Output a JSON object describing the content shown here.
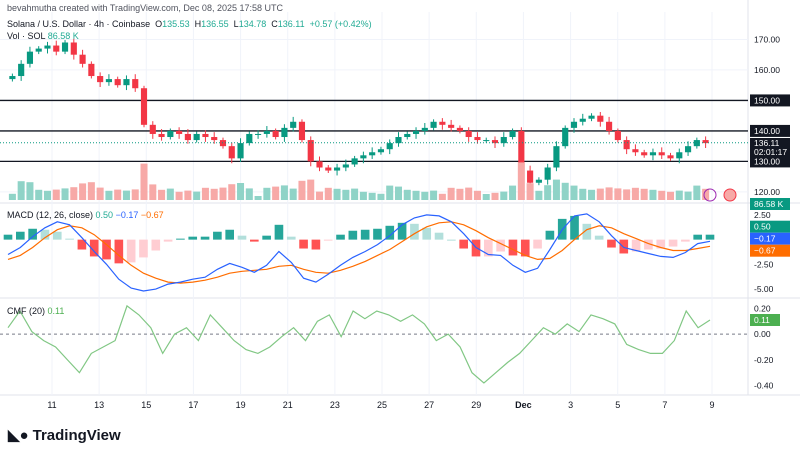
{
  "header": {
    "created": "bevahmutha created with TradingView.com, Dec 08, 2025 17:58 UTC",
    "symbol": "Solana / U.S. Dollar · 4h · Coinbase",
    "open": "135.53",
    "high": "136.55",
    "low": "134.78",
    "close": "136.11",
    "change": "+0.57 (+0.42%)",
    "vol_label": "Vol · SOL",
    "vol_value": "86.58 K"
  },
  "macd_legend": {
    "label": "MACD (12, 26, close)",
    "hist": "0.50",
    "macd": "−0.17",
    "signal": "−0.67"
  },
  "cmf_legend": {
    "label": "CMF (20)",
    "value": "0.11"
  },
  "brand": "TradingView",
  "colors": {
    "up": "#089981",
    "down": "#f23645",
    "macd": "#2962ff",
    "signal": "#ff6d00",
    "cmf": "#4caf50"
  },
  "chart_data": [
    {
      "type": "candlestick",
      "ylim": [
        118,
        175
      ],
      "yticks": [
        "170.00",
        "160.00",
        "150.00",
        "140.00",
        "130.00",
        "120.00"
      ],
      "hlines": [
        "150.00",
        "140.00",
        "130.00"
      ],
      "last_price": "136.11",
      "countdown": "02:01:17",
      "volume_tag": "86.58 K",
      "xticks": [
        "11",
        "13",
        "15",
        "17",
        "19",
        "21",
        "23",
        "25",
        "27",
        "29",
        "Dec",
        "3",
        "5",
        "7",
        "9"
      ],
      "closes": [
        158,
        162,
        166,
        167,
        168,
        166,
        169,
        165,
        162,
        158,
        156,
        157,
        155,
        157,
        154,
        142,
        139,
        138,
        140,
        139,
        137,
        139,
        138,
        137,
        135,
        131,
        136,
        139,
        139,
        140,
        138,
        141,
        143,
        137,
        130,
        128,
        127,
        128,
        129,
        131,
        132,
        133,
        134,
        136,
        138,
        139,
        140,
        141,
        143,
        142,
        141,
        140,
        138,
        137,
        137,
        136,
        138,
        140,
        127,
        123,
        124,
        128,
        135,
        141,
        143,
        144,
        145,
        143,
        140,
        137,
        134,
        133,
        132,
        133,
        132,
        131,
        133,
        135,
        137,
        136
      ]
    },
    {
      "type": "macd",
      "ylim": [
        -5.5,
        3.2
      ],
      "yticks": [
        "2.50",
        "-2.50",
        "-5.00"
      ],
      "macd": [
        -1.5,
        -0.8,
        0.3,
        1.2,
        1.8,
        1.5,
        0.2,
        -1.2,
        -2.5,
        -4,
        -4.9,
        -5.2,
        -5,
        -4.5,
        -4.3,
        -4,
        -3.8,
        -3,
        -2.4,
        -2.8,
        -3.3,
        -2.6,
        -1.2,
        -2.3,
        -3.9,
        -4.3,
        -3.5,
        -2.6,
        -1.8,
        -1.2,
        -0.5,
        0.4,
        1.5,
        2.2,
        2.5,
        2.4,
        1.8,
        0.6,
        -0.8,
        -1.5,
        -1.6,
        -2.6,
        -3.3,
        -2.9,
        -1,
        1,
        2.4,
        2.6,
        1.8,
        0.4,
        -0.8,
        -1.1,
        -1.4,
        -1.7,
        -1.8,
        -1.3,
        -0.4,
        -0.17
      ],
      "signal": [
        -2,
        -1.6,
        -0.8,
        0.2,
        1,
        1.4,
        1.2,
        0.5,
        -0.5,
        -1.6,
        -2.6,
        -3.4,
        -3.9,
        -4.3,
        -4.4,
        -4.3,
        -4.1,
        -3.8,
        -3.4,
        -3.2,
        -3.1,
        -3,
        -2.7,
        -2.6,
        -3,
        -3.3,
        -3.4,
        -3.1,
        -2.7,
        -2.2,
        -1.6,
        -1,
        -0.2,
        0.6,
        1.3,
        1.7,
        1.8,
        1.5,
        0.9,
        0.2,
        -0.4,
        -1,
        -1.6,
        -2,
        -1.9,
        -1.1,
        0,
        1,
        1.4,
        1.2,
        0.6,
        0.1,
        -0.4,
        -0.8,
        -1.1,
        -1.1,
        -0.9,
        -0.67
      ]
    },
    {
      "type": "line",
      "name": "CMF (20)",
      "ylim": [
        -0.45,
        0.25
      ],
      "yticks": [
        "0.20",
        "0.00",
        "-0.20",
        "-0.40"
      ],
      "values": [
        0.05,
        0.18,
        0.02,
        -0.05,
        -0.1,
        -0.2,
        -0.3,
        -0.15,
        -0.1,
        -0.05,
        0.22,
        0.15,
        0.05,
        -0.15,
        0,
        0.05,
        -0.05,
        0.15,
        0.05,
        -0.05,
        -0.12,
        -0.15,
        -0.1,
        -0.02,
        0.05,
        -0.05,
        0.1,
        0.15,
        -0.02,
        0.18,
        0.12,
        0.18,
        0.15,
        0.1,
        0.15,
        0.08,
        -0.05,
        0,
        -0.1,
        -0.3,
        -0.38,
        -0.3,
        -0.22,
        -0.15,
        -0.05,
        0.05,
        0,
        0.08,
        0.02,
        0.15,
        0.12,
        0.08,
        -0.08,
        -0.12,
        -0.15,
        -0.15,
        -0.05,
        0.18,
        0.05,
        0.11
      ]
    }
  ]
}
